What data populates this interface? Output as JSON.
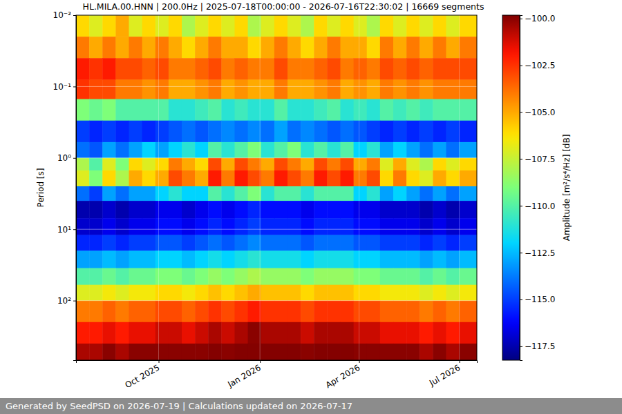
{
  "chart_data": {
    "type": "heatmap",
    "title": "HL.MILA.00.HNN | 200.0Hz | 2025-07-18T00:00:00 - 2026-07-16T22:30:02 | 16669 segments",
    "ylabel": "Period [s]",
    "footer": "Generated by SeedPSD on 2026-07-19 | Calculations updated on 2026-07-17",
    "log": "y",
    "grid": true,
    "xlim": [
      "2025-07-18T00:00:00",
      "2026-07-16T22:30:02"
    ],
    "ylim": [
      0.01,
      684
    ],
    "xticks": [
      {
        "value": "2025-10-01",
        "label": "Oct 2025"
      },
      {
        "value": "2026-01-01",
        "label": "Jan 2026"
      },
      {
        "value": "2026-04-01",
        "label": "Apr 2026"
      },
      {
        "value": "2026-07-01",
        "label": "Jul 2026"
      }
    ],
    "yticks": [
      {
        "value": 0.01,
        "label": "10⁻²"
      },
      {
        "value": 0.1,
        "label": "10⁻¹"
      },
      {
        "value": 1,
        "label": "10⁰"
      },
      {
        "value": 10,
        "label": "10¹"
      },
      {
        "value": 100,
        "label": "10²"
      }
    ],
    "x_edges": [
      "2025-07-18T00:00:00",
      "2025-07-30",
      "2025-08-11",
      "2025-08-23",
      "2025-09-04",
      "2025-09-16",
      "2025-09-28",
      "2025-10-10",
      "2025-10-22",
      "2025-11-03",
      "2025-11-15",
      "2025-11-27",
      "2025-12-09",
      "2025-12-21",
      "2026-01-02",
      "2026-01-14",
      "2026-01-26",
      "2026-02-07",
      "2026-02-19",
      "2026-03-03",
      "2026-03-15",
      "2026-03-27",
      "2026-04-08",
      "2026-04-20",
      "2026-05-02",
      "2026-05-14",
      "2026-05-26",
      "2026-06-07",
      "2026-06-19",
      "2026-07-01",
      "2026-07-16T22:30:02"
    ],
    "y_edges": [
      0.01,
      0.02,
      0.04,
      0.08,
      0.15,
      0.3,
      0.6,
      1.0,
      1.5,
      2.5,
      4,
      7,
      12,
      20,
      35,
      60,
      100,
      200,
      400,
      684
    ],
    "values": [
      [
        -106,
        -107,
        -106,
        -105,
        -107,
        -106,
        -107,
        -106,
        -108,
        -107,
        -106,
        -107,
        -106,
        -108,
        -107,
        -106,
        -107,
        -108,
        -106,
        -107,
        -106,
        -107,
        -108,
        -106,
        -107,
        -106,
        -107,
        -106,
        -107,
        -106
      ],
      [
        -104,
        -105,
        -104,
        -105,
        -104,
        -105,
        -104,
        -105,
        -106,
        -105,
        -104,
        -105,
        -105,
        -106,
        -105,
        -104,
        -105,
        -106,
        -105,
        -104,
        -105,
        -105,
        -106,
        -104,
        -105,
        -104,
        -105,
        -104,
        -105,
        -104
      ],
      [
        -102,
        -102.5,
        -102,
        -103,
        -103,
        -103.5,
        -103,
        -104,
        -104,
        -103.5,
        -103,
        -104,
        -103.5,
        -104,
        -104,
        -103,
        -104,
        -104,
        -103.5,
        -103,
        -104,
        -103.5,
        -104,
        -103,
        -103.5,
        -103,
        -103.5,
        -103,
        -103,
        -103
      ],
      [
        -102.5,
        -103,
        -103,
        -104,
        -104,
        -104.5,
        -104,
        -105,
        -105,
        -104.5,
        -104,
        -105,
        -104.5,
        -105,
        -105,
        -104,
        -105,
        -105,
        -104.5,
        -104,
        -105,
        -104.5,
        -105,
        -104,
        -104.5,
        -104,
        -104.5,
        -104,
        -104,
        -104
      ],
      [
        -109,
        -109.5,
        -109,
        -110,
        -110,
        -110,
        -110,
        -111,
        -111,
        -110.5,
        -110,
        -111,
        -110.5,
        -111,
        -111,
        -110,
        -111,
        -111,
        -110.5,
        -110,
        -111,
        -110.5,
        -111,
        -110,
        -110.5,
        -110,
        -110.5,
        -110,
        -110,
        -110
      ],
      [
        -115,
        -115.5,
        -115,
        -115.5,
        -115,
        -115.5,
        -115,
        -114.5,
        -114,
        -114.5,
        -114,
        -113.5,
        -114,
        -113.5,
        -114,
        -113,
        -114,
        -113.5,
        -114,
        -114.5,
        -114,
        -114.5,
        -115,
        -115.5,
        -115,
        -115.5,
        -115,
        -115.5,
        -115,
        -115.5
      ],
      [
        -114,
        -114.5,
        -113,
        -114,
        -113,
        -112,
        -113,
        -112,
        -111,
        -112,
        -110,
        -111,
        -110,
        -109,
        -111,
        -110,
        -109,
        -111,
        -110,
        -111,
        -110,
        -112,
        -111,
        -113,
        -112,
        -113,
        -114,
        -113,
        -114,
        -113
      ],
      [
        -108,
        -110,
        -107,
        -109,
        -106,
        -107,
        -106,
        -104,
        -105,
        -106,
        -103,
        -105,
        -103,
        -104,
        -105,
        -103,
        -104,
        -105,
        -103,
        -104,
        -103,
        -105,
        -104,
        -107,
        -105,
        -107,
        -108,
        -106,
        -107,
        -106
      ],
      [
        -107,
        -109,
        -106,
        -108,
        -105,
        -106,
        -105,
        -103,
        -104,
        -105,
        -102,
        -104,
        -102,
        -103,
        -104,
        -102,
        -103,
        -104,
        -102,
        -103,
        -102,
        -104,
        -103,
        -106,
        -104,
        -106,
        -107,
        -105,
        -106,
        -105
      ],
      [
        -114,
        -115,
        -113,
        -114,
        -113,
        -113,
        -112,
        -111,
        -112,
        -112,
        -110,
        -111,
        -110,
        -109,
        -111,
        -110,
        -110,
        -111,
        -110,
        -110,
        -110,
        -112,
        -111,
        -113,
        -112,
        -113,
        -114,
        -113,
        -114,
        -113
      ],
      [
        -117.5,
        -117.5,
        -117,
        -117.5,
        -117,
        -117,
        -116.5,
        -116.5,
        -117,
        -116.5,
        -116,
        -116.5,
        -116,
        -115.5,
        -116,
        -116,
        -116,
        -116.5,
        -116,
        -116,
        -116,
        -116.5,
        -116.5,
        -117,
        -117,
        -117,
        -117.5,
        -117,
        -117.5,
        -117
      ],
      [
        -117,
        -117,
        -116.5,
        -117,
        -116.5,
        -116.5,
        -116,
        -116,
        -116.5,
        -116,
        -115.5,
        -116,
        -115.5,
        -115,
        -115.5,
        -115.5,
        -115.5,
        -116,
        -115.5,
        -115.5,
        -115.5,
        -116,
        -116,
        -116.5,
        -116.5,
        -116.5,
        -117,
        -116.5,
        -117,
        -116.5
      ],
      [
        -115.5,
        -115.5,
        -115,
        -115.5,
        -115,
        -115,
        -114.5,
        -114.5,
        -115,
        -114.5,
        -114,
        -114.5,
        -114,
        -113.5,
        -114,
        -114,
        -114,
        -114.5,
        -114,
        -114,
        -114,
        -114.5,
        -114.5,
        -115,
        -115,
        -115,
        -115.5,
        -115,
        -115.5,
        -115
      ],
      [
        -113,
        -113,
        -112.5,
        -113,
        -112.5,
        -112.5,
        -112,
        -112,
        -112.5,
        -112,
        -111.5,
        -112,
        -111.5,
        -111,
        -111.5,
        -111.5,
        -111.5,
        -112,
        -111.5,
        -111.5,
        -111.5,
        -112,
        -112,
        -112.5,
        -112.5,
        -112.5,
        -113,
        -112.5,
        -113,
        -112.5
      ],
      [
        -110,
        -110,
        -109.5,
        -110,
        -109.5,
        -109.5,
        -109,
        -109,
        -109.5,
        -109,
        -108.5,
        -109,
        -108.5,
        -108,
        -108.5,
        -108.5,
        -108.5,
        -109,
        -108.5,
        -108.5,
        -108.5,
        -109,
        -109,
        -109.5,
        -109.5,
        -109.5,
        -110,
        -109.5,
        -110,
        -109.5
      ],
      [
        -107,
        -107,
        -106.5,
        -107,
        -106.5,
        -106.5,
        -106,
        -106,
        -106.5,
        -106,
        -105.5,
        -106,
        -105.5,
        -105,
        -105.5,
        -105.5,
        -105.5,
        -106,
        -105.5,
        -105.5,
        -105.5,
        -106,
        -106,
        -106.5,
        -106.5,
        -106.5,
        -107,
        -106.5,
        -107,
        -106.5
      ],
      [
        -104,
        -104,
        -103.5,
        -104,
        -103.5,
        -103.5,
        -103,
        -103,
        -103.5,
        -103,
        -102.5,
        -103,
        -102.5,
        -102,
        -102.5,
        -102.5,
        -102.5,
        -103,
        -102.5,
        -102.5,
        -102.5,
        -103,
        -103,
        -103.5,
        -103.5,
        -103.5,
        -104,
        -103.5,
        -104,
        -103.5
      ],
      [
        -102,
        -102,
        -101.5,
        -102,
        -101.5,
        -101.5,
        -101,
        -101,
        -101.5,
        -101,
        -100.5,
        -101,
        -100.5,
        -100,
        -100.5,
        -100.5,
        -100.5,
        -101,
        -100.5,
        -100.5,
        -100.5,
        -101,
        -101,
        -101.5,
        -101.5,
        -101.5,
        -102,
        -101.5,
        -102,
        -101.5
      ],
      [
        -100.5,
        -100.5,
        -100,
        -100.5,
        -100,
        -100,
        -100,
        -100,
        -100,
        -100,
        -99.9,
        -100,
        -99.9,
        -99.9,
        -99.9,
        -99.9,
        -99.9,
        -100,
        -99.9,
        -99.9,
        -99.9,
        -100,
        -100,
        -100,
        -100,
        -100,
        -100.5,
        -100,
        -100.5,
        -100
      ]
    ],
    "colorbar": {
      "label": "Amplitude [m²/s⁴/Hz] [dB]",
      "lim": [
        -118.24,
        -99.82
      ],
      "ticks": [
        {
          "value": -100,
          "label": "−100.0"
        },
        {
          "value": -102.5,
          "label": "−102.5"
        },
        {
          "value": -105,
          "label": "−105.0"
        },
        {
          "value": -107.5,
          "label": "−107.5"
        },
        {
          "value": -110,
          "label": "−110.0"
        },
        {
          "value": -112.5,
          "label": "−112.5"
        },
        {
          "value": -115,
          "label": "−115.0"
        },
        {
          "value": -117.5,
          "label": "−117.5"
        }
      ]
    }
  }
}
